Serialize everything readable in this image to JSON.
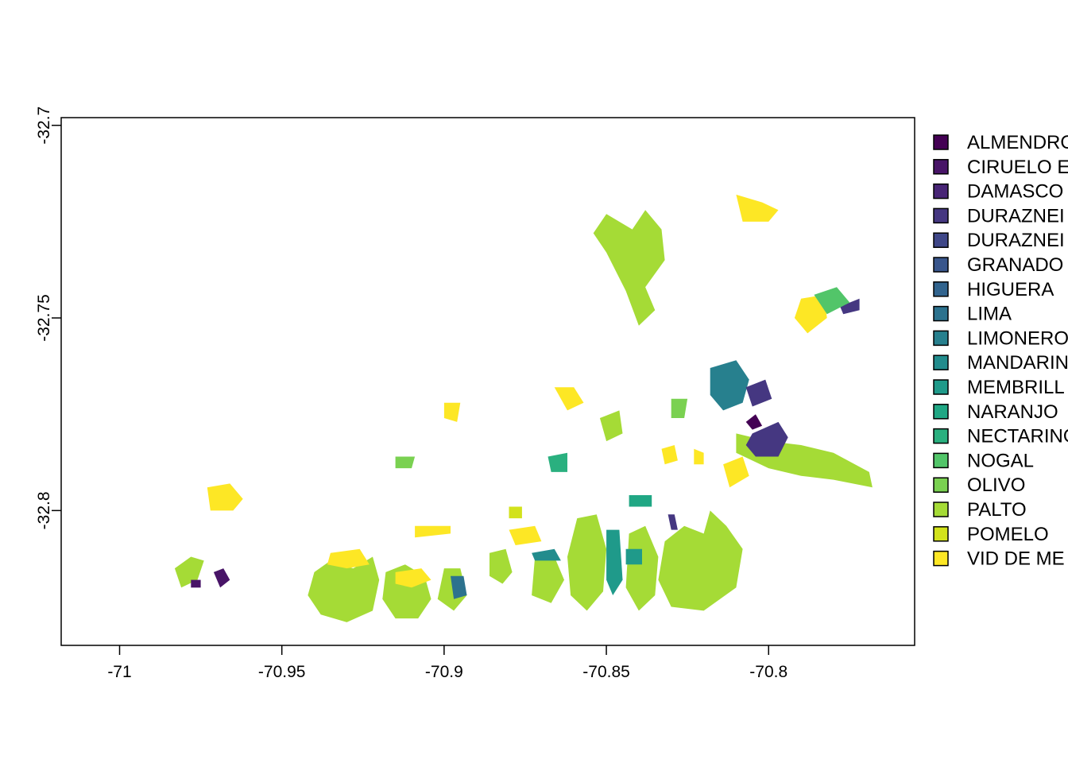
{
  "chart_data": {
    "type": "map",
    "title": "",
    "xlabel": "",
    "ylabel": "",
    "xlim": [
      -71.018,
      -70.755
    ],
    "ylim": [
      -32.835,
      -32.698
    ],
    "x_ticks": [
      {
        "value": -71,
        "label": "-71"
      },
      {
        "value": -70.95,
        "label": "-70.95"
      },
      {
        "value": -70.9,
        "label": "-70.9"
      },
      {
        "value": -70.85,
        "label": "-70.85"
      },
      {
        "value": -70.8,
        "label": "-70.8"
      }
    ],
    "y_ticks": [
      {
        "value": -32.7,
        "label": "-32.7"
      },
      {
        "value": -32.75,
        "label": "-32.75"
      },
      {
        "value": -32.8,
        "label": "-32.8"
      }
    ],
    "legend_placement": "right",
    "legend": [
      {
        "label": "ALMENDRO",
        "color": "#440154"
      },
      {
        "label": "CIRUELO E",
        "color": "#481467"
      },
      {
        "label": "DAMASCO",
        "color": "#482576"
      },
      {
        "label": "DURAZNEI",
        "color": "#453781"
      },
      {
        "label": "DURAZNEI",
        "color": "#3f4788"
      },
      {
        "label": "GRANADO",
        "color": "#39568c"
      },
      {
        "label": "HIGUERA",
        "color": "#32648e"
      },
      {
        "label": "LIMA",
        "color": "#2c728e"
      },
      {
        "label": "LIMONERO",
        "color": "#27808e"
      },
      {
        "label": "MANDARIN",
        "color": "#228c8d"
      },
      {
        "label": "MEMBRILL",
        "color": "#1f9a8a"
      },
      {
        "label": "NARANJO",
        "color": "#20a784"
      },
      {
        "label": "NECTARINO",
        "color": "#2ab07f"
      },
      {
        "label": "NOGAL",
        "color": "#52c569"
      },
      {
        "label": "OLIVO",
        "color": "#7ad151"
      },
      {
        "label": "PALTO",
        "color": "#a5db36"
      },
      {
        "label": "POMELO",
        "color": "#d2e21b"
      },
      {
        "label": "VID DE ME",
        "color": "#fde725"
      }
    ],
    "features": [
      {
        "category": "PALTO",
        "poly": [
          [
            -70.94,
            -32.816
          ],
          [
            -70.935,
            -32.813
          ],
          [
            -70.928,
            -32.815
          ],
          [
            -70.922,
            -32.812
          ],
          [
            -70.92,
            -32.818
          ],
          [
            -70.922,
            -32.826
          ],
          [
            -70.93,
            -32.829
          ],
          [
            -70.938,
            -32.827
          ],
          [
            -70.942,
            -32.822
          ]
        ]
      },
      {
        "category": "PALTO",
        "poly": [
          [
            -70.918,
            -32.816
          ],
          [
            -70.912,
            -32.814
          ],
          [
            -70.906,
            -32.817
          ],
          [
            -70.904,
            -32.823
          ],
          [
            -70.908,
            -32.828
          ],
          [
            -70.915,
            -32.828
          ],
          [
            -70.919,
            -32.823
          ]
        ]
      },
      {
        "category": "PALTO",
        "poly": [
          [
            -70.9,
            -32.815
          ],
          [
            -70.895,
            -32.815
          ],
          [
            -70.893,
            -32.822
          ],
          [
            -70.897,
            -32.826
          ],
          [
            -70.902,
            -32.823
          ]
        ]
      },
      {
        "category": "PALTO",
        "poly": [
          [
            -70.886,
            -32.811
          ],
          [
            -70.881,
            -32.81
          ],
          [
            -70.879,
            -32.816
          ],
          [
            -70.882,
            -32.819
          ],
          [
            -70.886,
            -32.817
          ]
        ]
      },
      {
        "category": "PALTO",
        "poly": [
          [
            -70.872,
            -32.812
          ],
          [
            -70.866,
            -32.812
          ],
          [
            -70.863,
            -32.818
          ],
          [
            -70.867,
            -32.824
          ],
          [
            -70.873,
            -32.822
          ]
        ]
      },
      {
        "category": "PALTO",
        "poly": [
          [
            -70.859,
            -32.802
          ],
          [
            -70.853,
            -32.801
          ],
          [
            -70.85,
            -32.81
          ],
          [
            -70.851,
            -32.821
          ],
          [
            -70.856,
            -32.826
          ],
          [
            -70.861,
            -32.822
          ],
          [
            -70.862,
            -32.812
          ]
        ]
      },
      {
        "category": "PALTO",
        "poly": [
          [
            -70.843,
            -32.806
          ],
          [
            -70.838,
            -32.804
          ],
          [
            -70.834,
            -32.812
          ],
          [
            -70.835,
            -32.822
          ],
          [
            -70.84,
            -32.826
          ],
          [
            -70.844,
            -32.82
          ]
        ]
      },
      {
        "category": "PALTO",
        "poly": [
          [
            -70.832,
            -32.808
          ],
          [
            -70.826,
            -32.804
          ],
          [
            -70.82,
            -32.806
          ],
          [
            -70.818,
            -32.8
          ],
          [
            -70.813,
            -32.804
          ],
          [
            -70.808,
            -32.81
          ],
          [
            -70.81,
            -32.82
          ],
          [
            -70.82,
            -32.826
          ],
          [
            -70.83,
            -32.825
          ],
          [
            -70.834,
            -32.818
          ]
        ]
      },
      {
        "category": "PALTO",
        "poly": [
          [
            -70.81,
            -32.78
          ],
          [
            -70.8,
            -32.782
          ],
          [
            -70.79,
            -32.783
          ],
          [
            -70.78,
            -32.785
          ],
          [
            -70.769,
            -32.79
          ],
          [
            -70.768,
            -32.794
          ],
          [
            -70.78,
            -32.792
          ],
          [
            -70.79,
            -32.791
          ],
          [
            -70.8,
            -32.789
          ],
          [
            -70.81,
            -32.785
          ]
        ]
      },
      {
        "category": "PALTO",
        "poly": [
          [
            -70.85,
            -32.723
          ],
          [
            -70.842,
            -32.727
          ],
          [
            -70.838,
            -32.722
          ],
          [
            -70.833,
            -32.727
          ],
          [
            -70.832,
            -32.735
          ],
          [
            -70.838,
            -32.742
          ],
          [
            -70.835,
            -32.748
          ],
          [
            -70.84,
            -32.752
          ],
          [
            -70.844,
            -32.743
          ],
          [
            -70.85,
            -32.733
          ],
          [
            -70.854,
            -32.728
          ]
        ]
      },
      {
        "category": "PALTO",
        "poly": [
          [
            -70.983,
            -32.815
          ],
          [
            -70.978,
            -32.812
          ],
          [
            -70.974,
            -32.813
          ],
          [
            -70.976,
            -32.818
          ],
          [
            -70.981,
            -32.82
          ]
        ]
      },
      {
        "category": "PALTO",
        "poly": [
          [
            -70.852,
            -32.776
          ],
          [
            -70.846,
            -32.774
          ],
          [
            -70.845,
            -32.78
          ],
          [
            -70.85,
            -32.782
          ]
        ]
      },
      {
        "category": "VID DE ME",
        "poly": [
          [
            -70.973,
            -32.794
          ],
          [
            -70.966,
            -32.793
          ],
          [
            -70.962,
            -32.797
          ],
          [
            -70.965,
            -32.8
          ],
          [
            -70.972,
            -32.8
          ]
        ]
      },
      {
        "category": "VID DE ME",
        "poly": [
          [
            -70.81,
            -32.718
          ],
          [
            -70.802,
            -32.72
          ],
          [
            -70.797,
            -32.722
          ],
          [
            -70.8,
            -32.725
          ],
          [
            -70.808,
            -32.725
          ]
        ]
      },
      {
        "category": "VID DE ME",
        "poly": [
          [
            -70.79,
            -32.745
          ],
          [
            -70.783,
            -32.744
          ],
          [
            -70.782,
            -32.75
          ],
          [
            -70.788,
            -32.754
          ],
          [
            -70.792,
            -32.75
          ]
        ]
      },
      {
        "category": "VID DE ME",
        "poly": [
          [
            -70.935,
            -32.811
          ],
          [
            -70.926,
            -32.81
          ],
          [
            -70.923,
            -32.814
          ],
          [
            -70.93,
            -32.815
          ],
          [
            -70.936,
            -32.814
          ]
        ]
      },
      {
        "category": "VID DE ME",
        "poly": [
          [
            -70.915,
            -32.816
          ],
          [
            -70.907,
            -32.815
          ],
          [
            -70.904,
            -32.818
          ],
          [
            -70.91,
            -32.82
          ],
          [
            -70.915,
            -32.819
          ]
        ]
      },
      {
        "category": "VID DE ME",
        "poly": [
          [
            -70.833,
            -32.784
          ],
          [
            -70.829,
            -32.783
          ],
          [
            -70.828,
            -32.787
          ],
          [
            -70.832,
            -32.788
          ]
        ]
      },
      {
        "category": "VID DE ME",
        "poly": [
          [
            -70.814,
            -32.788
          ],
          [
            -70.808,
            -32.786
          ],
          [
            -70.806,
            -32.791
          ],
          [
            -70.812,
            -32.794
          ]
        ]
      },
      {
        "category": "VID DE ME",
        "poly": [
          [
            -70.88,
            -32.805
          ],
          [
            -70.872,
            -32.804
          ],
          [
            -70.87,
            -32.808
          ],
          [
            -70.878,
            -32.809
          ]
        ]
      },
      {
        "category": "VID DE ME",
        "poly": [
          [
            -70.909,
            -32.804
          ],
          [
            -70.898,
            -32.804
          ],
          [
            -70.898,
            -32.806
          ],
          [
            -70.909,
            -32.807
          ]
        ]
      },
      {
        "category": "VID DE ME",
        "poly": [
          [
            -70.866,
            -32.768
          ],
          [
            -70.86,
            -32.768
          ],
          [
            -70.857,
            -32.772
          ],
          [
            -70.862,
            -32.774
          ]
        ]
      },
      {
        "category": "VID DE ME",
        "poly": [
          [
            -70.9,
            -32.772
          ],
          [
            -70.895,
            -32.772
          ],
          [
            -70.896,
            -32.777
          ],
          [
            -70.9,
            -32.776
          ]
        ]
      },
      {
        "category": "VID DE ME",
        "poly": [
          [
            -70.823,
            -32.784
          ],
          [
            -70.82,
            -32.785
          ],
          [
            -70.82,
            -32.788
          ],
          [
            -70.823,
            -32.788
          ]
        ]
      },
      {
        "category": "LIMONERO",
        "poly": [
          [
            -70.818,
            -32.763
          ],
          [
            -70.81,
            -32.761
          ],
          [
            -70.806,
            -32.766
          ],
          [
            -70.808,
            -32.772
          ],
          [
            -70.814,
            -32.774
          ],
          [
            -70.818,
            -32.77
          ]
        ]
      },
      {
        "category": "MEMBRILL",
        "poly": [
          [
            -70.85,
            -32.805
          ],
          [
            -70.846,
            -32.805
          ],
          [
            -70.845,
            -32.818
          ],
          [
            -70.848,
            -32.822
          ],
          [
            -70.85,
            -32.818
          ]
        ]
      },
      {
        "category": "MEMBRILL",
        "poly": [
          [
            -70.844,
            -32.81
          ],
          [
            -70.839,
            -32.81
          ],
          [
            -70.839,
            -32.814
          ],
          [
            -70.844,
            -32.814
          ]
        ]
      },
      {
        "category": "LIMA",
        "poly": [
          [
            -70.898,
            -32.817
          ],
          [
            -70.894,
            -32.817
          ],
          [
            -70.893,
            -32.822
          ],
          [
            -70.897,
            -32.823
          ]
        ]
      },
      {
        "category": "MANDARIN",
        "poly": [
          [
            -70.873,
            -32.811
          ],
          [
            -70.866,
            -32.81
          ],
          [
            -70.864,
            -32.813
          ],
          [
            -70.872,
            -32.813
          ]
        ]
      },
      {
        "category": "NARANJO",
        "poly": [
          [
            -70.843,
            -32.796
          ],
          [
            -70.836,
            -32.796
          ],
          [
            -70.836,
            -32.799
          ],
          [
            -70.843,
            -32.799
          ]
        ]
      },
      {
        "category": "DURAZNEI",
        "poly": [
          [
            -70.807,
            -32.768
          ],
          [
            -70.801,
            -32.766
          ],
          [
            -70.799,
            -32.771
          ],
          [
            -70.805,
            -32.773
          ]
        ]
      },
      {
        "category": "DURAZNEI",
        "poly": [
          [
            -70.805,
            -32.78
          ],
          [
            -70.797,
            -32.777
          ],
          [
            -70.794,
            -32.781
          ],
          [
            -70.797,
            -32.786
          ],
          [
            -70.804,
            -32.786
          ],
          [
            -70.807,
            -32.783
          ]
        ]
      },
      {
        "category": "DURAZNEI",
        "poly": [
          [
            -70.778,
            -32.747
          ],
          [
            -70.772,
            -32.745
          ],
          [
            -70.772,
            -32.748
          ],
          [
            -70.777,
            -32.749
          ]
        ]
      },
      {
        "category": "DURAZNEI",
        "poly": [
          [
            -70.831,
            -32.801
          ],
          [
            -70.829,
            -32.801
          ],
          [
            -70.828,
            -32.805
          ],
          [
            -70.83,
            -32.805
          ]
        ]
      },
      {
        "category": "CIRUELO E",
        "poly": [
          [
            -70.971,
            -32.816
          ],
          [
            -70.968,
            -32.815
          ],
          [
            -70.966,
            -32.818
          ],
          [
            -70.969,
            -32.82
          ]
        ]
      },
      {
        "category": "CIRUELO E",
        "poly": [
          [
            -70.978,
            -32.818
          ],
          [
            -70.975,
            -32.818
          ],
          [
            -70.975,
            -32.82
          ],
          [
            -70.978,
            -32.82
          ]
        ]
      },
      {
        "category": "ALMENDRO",
        "poly": [
          [
            -70.807,
            -32.777
          ],
          [
            -70.804,
            -32.775
          ],
          [
            -70.802,
            -32.778
          ],
          [
            -70.805,
            -32.779
          ]
        ]
      },
      {
        "category": "NOGAL",
        "poly": [
          [
            -70.786,
            -32.744
          ],
          [
            -70.779,
            -32.742
          ],
          [
            -70.775,
            -32.746
          ],
          [
            -70.782,
            -32.749
          ]
        ]
      },
      {
        "category": "NECTARINO",
        "poly": [
          [
            -70.868,
            -32.786
          ],
          [
            -70.862,
            -32.785
          ],
          [
            -70.862,
            -32.79
          ],
          [
            -70.867,
            -32.79
          ]
        ]
      },
      {
        "category": "OLIVO",
        "poly": [
          [
            -70.915,
            -32.786
          ],
          [
            -70.909,
            -32.786
          ],
          [
            -70.91,
            -32.789
          ],
          [
            -70.915,
            -32.789
          ]
        ]
      },
      {
        "category": "OLIVO",
        "poly": [
          [
            -70.83,
            -32.771
          ],
          [
            -70.825,
            -32.771
          ],
          [
            -70.826,
            -32.776
          ],
          [
            -70.83,
            -32.776
          ]
        ]
      },
      {
        "category": "POMELO",
        "poly": [
          [
            -70.88,
            -32.799
          ],
          [
            -70.876,
            -32.799
          ],
          [
            -70.876,
            -32.802
          ],
          [
            -70.88,
            -32.802
          ]
        ]
      }
    ]
  }
}
